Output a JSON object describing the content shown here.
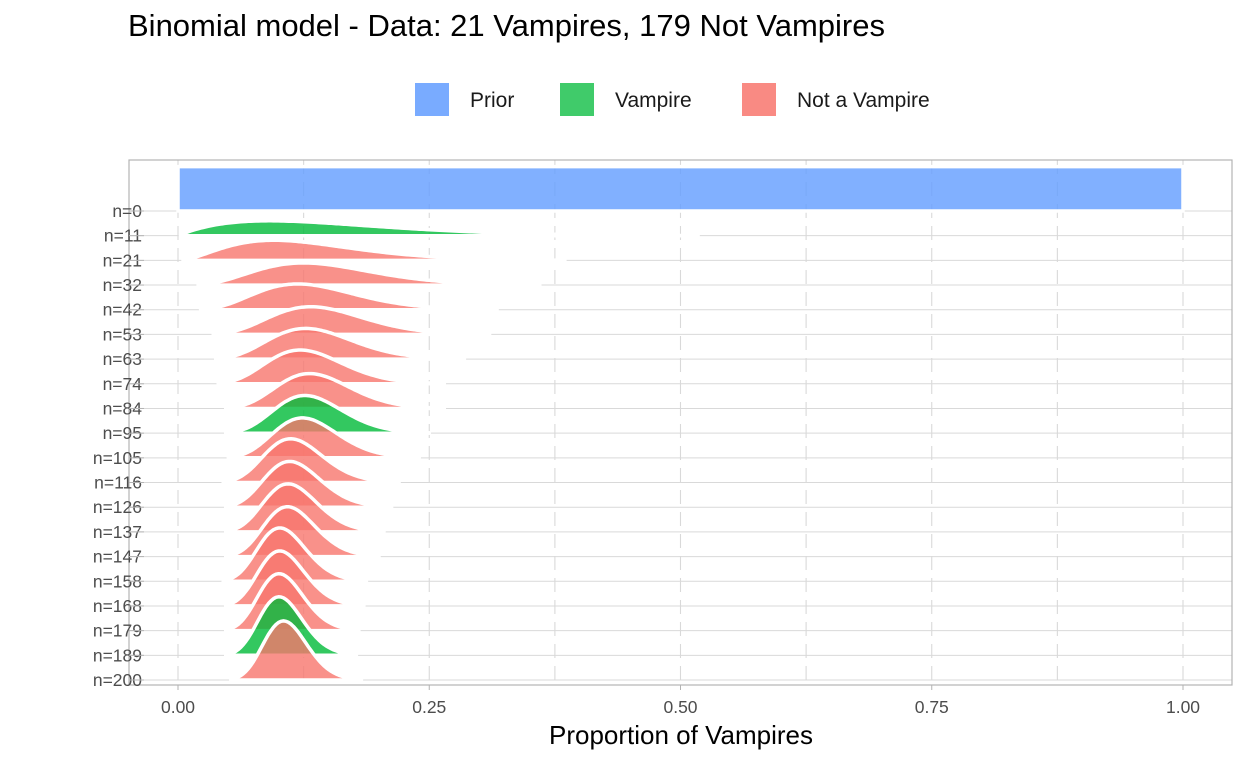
{
  "chart_data": {
    "type": "area",
    "subtype": "ridgeline",
    "title": "Binomial model - Data: 21 Vampires, 179 Not Vampires",
    "xlabel": "Proportion of Vampires",
    "ylabel": "",
    "xlim": [
      0,
      1
    ],
    "x_ticks": [
      "0.00",
      "0.25",
      "0.50",
      "0.75",
      "1.00"
    ],
    "grid": true,
    "legend": {
      "placement": "top",
      "entries": [
        {
          "name": "Prior",
          "color": "#619CFF"
        },
        {
          "name": "Vampire",
          "color": "#00BA38"
        },
        {
          "name": "Not a Vampire",
          "color": "#F8766D"
        }
      ]
    },
    "series": [
      {
        "label": "n=0",
        "outcome": "Prior",
        "successes": 0,
        "trials": 0
      },
      {
        "label": "n=11",
        "outcome": "Vampire",
        "successes": 1,
        "trials": 11
      },
      {
        "label": "n=21",
        "outcome": "Not a Vampire",
        "successes": 2,
        "trials": 21
      },
      {
        "label": "n=32",
        "outcome": "Not a Vampire",
        "successes": 4,
        "trials": 32
      },
      {
        "label": "n=42",
        "outcome": "Not a Vampire",
        "successes": 5,
        "trials": 42
      },
      {
        "label": "n=53",
        "outcome": "Not a Vampire",
        "successes": 7,
        "trials": 53
      },
      {
        "label": "n=63",
        "outcome": "Not a Vampire",
        "successes": 8,
        "trials": 63
      },
      {
        "label": "n=74",
        "outcome": "Not a Vampire",
        "successes": 9,
        "trials": 74
      },
      {
        "label": "n=84",
        "outcome": "Not a Vampire",
        "successes": 11,
        "trials": 84
      },
      {
        "label": "n=95",
        "outcome": "Vampire",
        "successes": 12,
        "trials": 95
      },
      {
        "label": "n=105",
        "outcome": "Not a Vampire",
        "successes": 13,
        "trials": 105
      },
      {
        "label": "n=116",
        "outcome": "Not a Vampire",
        "successes": 13,
        "trials": 116
      },
      {
        "label": "n=126",
        "outcome": "Not a Vampire",
        "successes": 14,
        "trials": 126
      },
      {
        "label": "n=137",
        "outcome": "Not a Vampire",
        "successes": 15,
        "trials": 137
      },
      {
        "label": "n=147",
        "outcome": "Not a Vampire",
        "successes": 16,
        "trials": 147
      },
      {
        "label": "n=158",
        "outcome": "Not a Vampire",
        "successes": 16,
        "trials": 158
      },
      {
        "label": "n=168",
        "outcome": "Not a Vampire",
        "successes": 17,
        "trials": 168
      },
      {
        "label": "n=179",
        "outcome": "Not a Vampire",
        "successes": 18,
        "trials": 179
      },
      {
        "label": "n=189",
        "outcome": "Vampire",
        "successes": 19,
        "trials": 189
      },
      {
        "label": "n=200",
        "outcome": "Not a Vampire",
        "successes": 21,
        "trials": 200
      }
    ]
  }
}
